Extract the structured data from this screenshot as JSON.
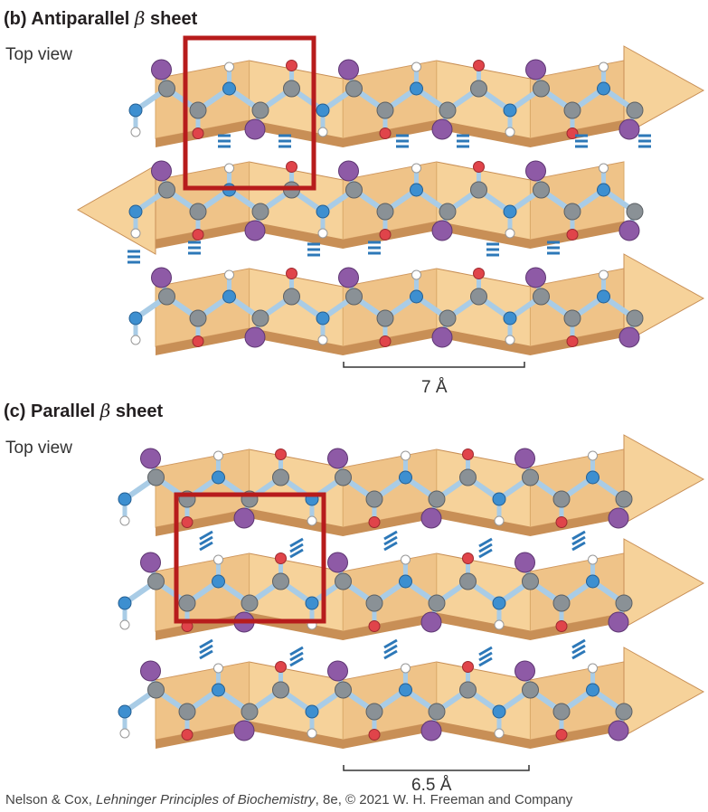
{
  "panel_b": {
    "letter": "(b)",
    "title": "Antiparallel",
    "beta": "β",
    "sheet": "sheet",
    "view": "Top view",
    "dimension": "7 Å",
    "strand_directions": [
      "right",
      "left",
      "right"
    ]
  },
  "panel_c": {
    "letter": "(c)",
    "title": "Parallel",
    "beta": "β",
    "sheet": "sheet",
    "view": "Top view",
    "dimension": "6.5 Å",
    "strand_directions": [
      "right",
      "right",
      "right"
    ]
  },
  "credit": {
    "authors": "Nelson & Cox, ",
    "book": "Lehninger Principles of Biochemistry",
    "rest": ", 8e, © 2021 W. H. Freeman and Company"
  },
  "colors": {
    "ribbon": "#f6d29a",
    "ribbon_shadow": "#c88f56",
    "carbon": "#8a9196",
    "nitrogen": "#3d8fd0",
    "oxygen": "#e0444a",
    "hydrogen": "#ffffff",
    "side_chain": "#8e5aa6",
    "bond": "#a9cce6",
    "hbond": "#2d78b8",
    "highlight_box": "#b71c1c"
  }
}
